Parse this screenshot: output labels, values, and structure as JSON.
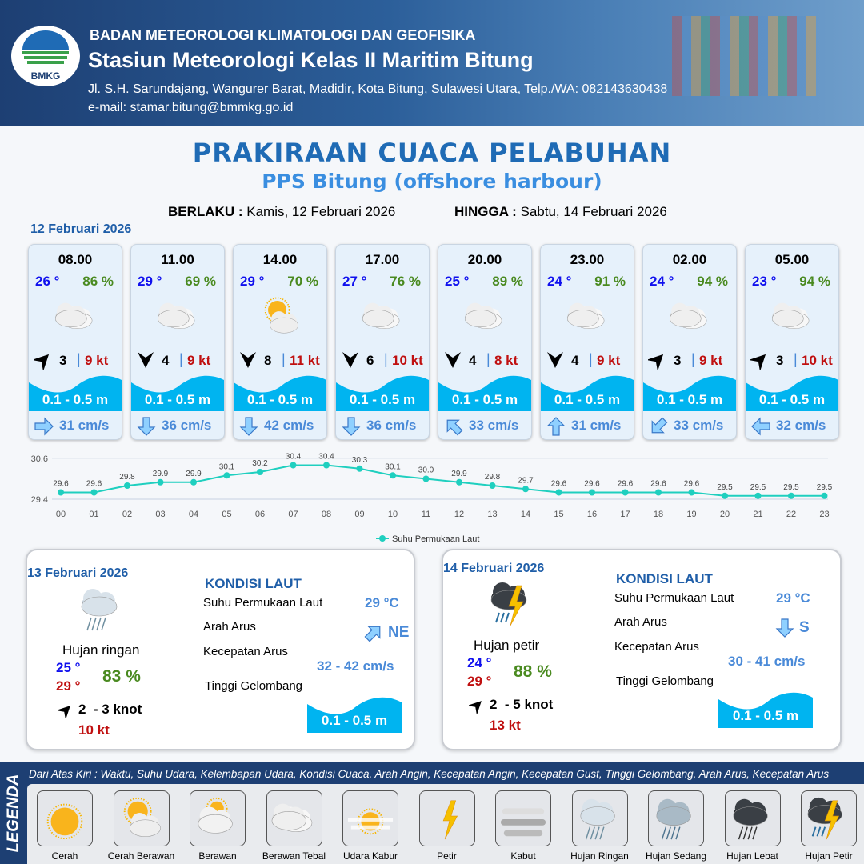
{
  "header": {
    "agency": "BADAN METEOROLOGI KLIMATOLOGI DAN GEOFISIKA",
    "station": "Stasiun Meteorologi Kelas II Maritim Bitung",
    "address": "Jl. S.H. Sarundajang, Wangurer Barat, Madidir, Kota Bitung, Sulawesi Utara, Telp./WA: 082143630438",
    "email": "e-mail: stamar.bitung@bmmkg.go.id",
    "logo_text": "BMKG"
  },
  "title": "PRAKIRAAN CUACA PELABUHAN",
  "subtitle": "PPS Bitung (offshore harbour)",
  "validity": {
    "from_label": "BERLAKU :",
    "from": "Kamis, 12 Februari 2026",
    "to_label": "HINGGA :",
    "to": "Sabtu, 14 Februari 2026"
  },
  "day1": {
    "date": "12 Februari 2026",
    "forecasts": [
      {
        "time": "08.00",
        "temp": "26 °",
        "hum": "86 %",
        "icon": "berawan-tebal",
        "wind_dir_deg": 225,
        "wind": "3",
        "gust": "9 kt",
        "wave": "0.1 - 0.5 m",
        "cur_dir": "right",
        "cur": "31 cm/s"
      },
      {
        "time": "11.00",
        "temp": "29 °",
        "hum": "69 %",
        "icon": "berawan-tebal",
        "wind_dir_deg": 0,
        "wind": "4",
        "gust": "9 kt",
        "wave": "0.1 - 0.5 m",
        "cur_dir": "down",
        "cur": "36 cm/s"
      },
      {
        "time": "14.00",
        "temp": "29 °",
        "hum": "70 %",
        "icon": "cerah-berawan",
        "wind_dir_deg": 0,
        "wind": "8",
        "gust": "11 kt",
        "wave": "0.1 - 0.5 m",
        "cur_dir": "down",
        "cur": "42 cm/s"
      },
      {
        "time": "17.00",
        "temp": "27 °",
        "hum": "76 %",
        "icon": "berawan-tebal",
        "wind_dir_deg": 0,
        "wind": "6",
        "gust": "10 kt",
        "wave": "0.1 - 0.5 m",
        "cur_dir": "down",
        "cur": "36 cm/s"
      },
      {
        "time": "20.00",
        "temp": "25 °",
        "hum": "89 %",
        "icon": "berawan-tebal",
        "wind_dir_deg": 0,
        "wind": "4",
        "gust": "8 kt",
        "wave": "0.1 - 0.5 m",
        "cur_dir": "up-left",
        "cur": "33 cm/s"
      },
      {
        "time": "23.00",
        "temp": "24 °",
        "hum": "91 %",
        "icon": "berawan-tebal",
        "wind_dir_deg": 0,
        "wind": "4",
        "gust": "9 kt",
        "wave": "0.1 - 0.5 m",
        "cur_dir": "up",
        "cur": "31 cm/s"
      },
      {
        "time": "02.00",
        "temp": "24 °",
        "hum": "94 %",
        "icon": "berawan-tebal",
        "wind_dir_deg": 225,
        "wind": "3",
        "gust": "9 kt",
        "wave": "0.1 - 0.5 m",
        "cur_dir": "down-left",
        "cur": "33 cm/s"
      },
      {
        "time": "05.00",
        "temp": "23 °",
        "hum": "94 %",
        "icon": "berawan-tebal",
        "wind_dir_deg": 225,
        "wind": "3",
        "gust": "10 kt",
        "wave": "0.1 - 0.5 m",
        "cur_dir": "left",
        "cur": "32 cm/s"
      }
    ]
  },
  "chart_data": {
    "type": "line",
    "categories": [
      "00",
      "01",
      "02",
      "03",
      "04",
      "05",
      "06",
      "07",
      "08",
      "09",
      "10",
      "11",
      "12",
      "13",
      "14",
      "15",
      "16",
      "17",
      "18",
      "19",
      "20",
      "21",
      "22",
      "23"
    ],
    "series": [
      {
        "name": "Suhu Permukaan Laut",
        "values": [
          29.6,
          29.6,
          29.8,
          29.9,
          29.9,
          30.1,
          30.2,
          30.4,
          30.4,
          30.3,
          30.1,
          30.0,
          29.9,
          29.8,
          29.7,
          29.6,
          29.6,
          29.6,
          29.6,
          29.6,
          29.5,
          29.5,
          29.5,
          29.5
        ]
      }
    ],
    "yticks": [
      "30.6",
      "29.4"
    ],
    "ylim": [
      29.4,
      30.6
    ],
    "legend": "bottom",
    "color": "#1fcfbf"
  },
  "days": [
    {
      "date": "13 Februari 2026",
      "icon": "hujan-ringan",
      "cond": "Hujan ringan",
      "tmin": "25 °",
      "tmax": "29 °",
      "hum": "83 %",
      "wind": "2  - 3 knot",
      "gust": "10 kt",
      "sea_title": "KONDISI LAUT",
      "sst_label": "Suhu Permukaan Laut",
      "sst": "29 °C",
      "cur_dir_label": "Arah Arus",
      "cur_dir": "NE",
      "cur_arrow": "up-right",
      "cur_speed_label": "Kecepatan Arus",
      "cur_speed": "32 - 42 cm/s",
      "wave_label": "Tinggi Gelombang",
      "wave": "0.1 - 0.5 m"
    },
    {
      "date": "14 Februari 2026",
      "icon": "hujan-petir",
      "cond": "Hujan petir",
      "tmin": "24 °",
      "tmax": "29 °",
      "hum": "88 %",
      "wind": "2  - 5 knot",
      "gust": "13 kt",
      "sea_title": "KONDISI LAUT",
      "sst_label": "Suhu Permukaan Laut",
      "sst": "29 °C",
      "cur_dir_label": "Arah Arus",
      "cur_dir": "S",
      "cur_arrow": "down",
      "cur_speed_label": "Kecepatan Arus",
      "cur_speed": "30 - 41 cm/s",
      "wave_label": "Tinggi Gelombang",
      "wave": "0.1 - 0.5 m"
    }
  ],
  "legend": {
    "title": "LEGENDA",
    "desc": "Dari Atas Kiri : Waktu, Suhu Udara, Kelembapan Udara, Kondisi Cuaca, Arah Angin, Kecepatan Angin, Kecepatan Gust, Tinggi Gelombang, Arah Arus, Kecepatan Arus",
    "items": [
      {
        "icon": "cerah",
        "label": "Cerah"
      },
      {
        "icon": "cerah-berawan",
        "label": "Cerah Berawan"
      },
      {
        "icon": "berawan",
        "label": "Berawan"
      },
      {
        "icon": "berawan-tebal",
        "label": "Berawan Tebal"
      },
      {
        "icon": "udara-kabur",
        "label": "Udara Kabur"
      },
      {
        "icon": "petir",
        "label": "Petir"
      },
      {
        "icon": "kabut",
        "label": "Kabut"
      },
      {
        "icon": "hujan-ringan",
        "label": "Hujan Ringan"
      },
      {
        "icon": "hujan-sedang",
        "label": "Hujan Sedang"
      },
      {
        "icon": "hujan-lebat",
        "label": "Hujan Lebat"
      },
      {
        "icon": "hujan-petir",
        "label": "Hujan Petir"
      }
    ]
  },
  "colors": {
    "header": "#1d3f73",
    "title": "#1f6bb5",
    "wave": "#00b4f0",
    "temp": "#1010ee",
    "humidity": "#4a8a20",
    "gust": "#c01010",
    "current": "#4a8ad8"
  }
}
